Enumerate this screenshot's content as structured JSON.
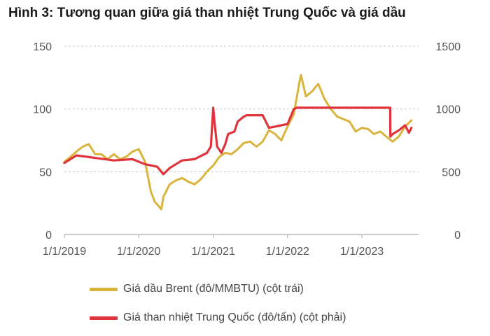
{
  "chart_data": {
    "type": "line",
    "title": "Hình 3: Tương quan giữa giá than nhiệt Trung Quốc và giá dầu",
    "x_ticks": [
      "1/1/2019",
      "1/1/2020",
      "1/1/2021",
      "1/1/2022",
      "1/1/2023"
    ],
    "y_left": {
      "lim": [
        0,
        150
      ],
      "ticks": [
        "0",
        "50",
        "100",
        "150"
      ]
    },
    "y_right": {
      "lim": [
        0,
        1500
      ],
      "ticks": [
        "0",
        "500",
        "1000",
        "1500"
      ]
    },
    "grid": true,
    "legend_position": "bottom",
    "series": [
      {
        "name": "Giá dầu Brent (đô/MMBTU) (cột trái)",
        "axis": "left",
        "color": "#d9b43c",
        "x": [
          "2019-01-01",
          "2019-02-01",
          "2019-03-01",
          "2019-04-01",
          "2019-05-01",
          "2019-06-01",
          "2019-07-01",
          "2019-08-01",
          "2019-09-01",
          "2019-10-01",
          "2019-11-01",
          "2019-12-01",
          "2020-01-01",
          "2020-02-01",
          "2020-03-01",
          "2020-03-20",
          "2020-04-01",
          "2020-04-21",
          "2020-05-01",
          "2020-06-01",
          "2020-07-01",
          "2020-08-01",
          "2020-09-01",
          "2020-10-01",
          "2020-11-01",
          "2020-12-01",
          "2021-01-01",
          "2021-02-01",
          "2021-03-01",
          "2021-04-01",
          "2021-05-01",
          "2021-06-01",
          "2021-07-01",
          "2021-08-01",
          "2021-09-01",
          "2021-10-01",
          "2021-11-01",
          "2021-12-01",
          "2022-01-01",
          "2022-02-01",
          "2022-03-01",
          "2022-03-08",
          "2022-04-01",
          "2022-05-01",
          "2022-06-01",
          "2022-07-01",
          "2022-08-01",
          "2022-09-01",
          "2022-10-01",
          "2022-11-01",
          "2022-12-01",
          "2023-01-01",
          "2023-02-01",
          "2023-03-01",
          "2023-04-01",
          "2023-05-01",
          "2023-06-01",
          "2023-07-01",
          "2023-08-01",
          "2023-09-01"
        ],
        "values": [
          58,
          62,
          66,
          70,
          72,
          64,
          64,
          60,
          64,
          60,
          62,
          66,
          68,
          58,
          34,
          26,
          24,
          20,
          30,
          40,
          43,
          45,
          42,
          40,
          44,
          50,
          55,
          62,
          65,
          64,
          68,
          73,
          74,
          70,
          74,
          83,
          80,
          75,
          86,
          96,
          122,
          127,
          110,
          114,
          120,
          108,
          100,
          94,
          92,
          90,
          82,
          85,
          84,
          80,
          82,
          78,
          74,
          78,
          86,
          91
        ]
      },
      {
        "name": "Giá than nhiệt Trung Quốc (đô/tấn) (cột phải)",
        "axis": "right",
        "color": "#e0343c",
        "x": [
          "2019-01-01",
          "2019-03-01",
          "2019-06-01",
          "2019-09-01",
          "2019-12-01",
          "2020-02-01",
          "2020-04-01",
          "2020-05-01",
          "2020-06-01",
          "2020-08-01",
          "2020-10-01",
          "2020-12-01",
          "2020-12-20",
          "2021-01-01",
          "2021-01-08",
          "2021-01-20",
          "2021-02-10",
          "2021-03-01",
          "2021-03-15",
          "2021-04-15",
          "2021-05-01",
          "2021-06-01",
          "2021-06-15",
          "2021-07-01",
          "2021-08-01",
          "2021-09-01",
          "2021-10-01",
          "2021-11-01",
          "2021-12-01",
          "2022-01-01",
          "2022-02-01",
          "2022-02-15",
          "2022-06-01",
          "2022-12-01",
          "2023-05-20",
          "2023-05-21",
          "2023-06-01",
          "2023-07-01",
          "2023-08-01",
          "2023-08-20",
          "2023-09-01"
        ],
        "values": [
          570,
          630,
          610,
          590,
          600,
          560,
          540,
          480,
          530,
          590,
          600,
          650,
          700,
          1010,
          880,
          700,
          650,
          720,
          800,
          820,
          900,
          940,
          950,
          950,
          950,
          950,
          850,
          860,
          870,
          880,
          1000,
          1010,
          1010,
          1010,
          1010,
          780,
          800,
          830,
          870,
          810,
          850
        ]
      }
    ]
  }
}
